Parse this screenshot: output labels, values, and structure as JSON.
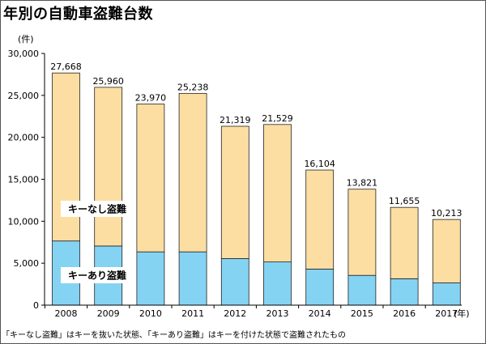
{
  "chart_data": {
    "type": "bar",
    "stacked": true,
    "title": "年別の自動車盗難台数",
    "ylabel": "(件)",
    "xlabel": "(年)",
    "ylim": [
      0,
      30000
    ],
    "yticks": [
      0,
      5000,
      10000,
      15000,
      20000,
      25000,
      30000
    ],
    "ytick_labels": [
      "0",
      "5,000",
      "10,000",
      "15,000",
      "20,000",
      "25,000",
      "30,000"
    ],
    "categories": [
      "2008",
      "2009",
      "2010",
      "2011",
      "2012",
      "2013",
      "2014",
      "2015",
      "2016",
      "2017"
    ],
    "totals": [
      27668,
      25960,
      23970,
      25238,
      21319,
      21529,
      16104,
      13821,
      11655,
      10213
    ],
    "total_labels": [
      "27,668",
      "25,960",
      "23,970",
      "25,238",
      "21,319",
      "21,529",
      "16,104",
      "13,821",
      "11,655",
      "10,213"
    ],
    "series": [
      {
        "name": "キーあり盗難",
        "color": "#85d3f3",
        "values": [
          7650,
          7050,
          6350,
          6350,
          5550,
          5150,
          4300,
          3550,
          3150,
          2650
        ]
      },
      {
        "name": "キーなし盗難",
        "color": "#fcdea2",
        "values": [
          20018,
          18910,
          17620,
          18888,
          15769,
          16379,
          11804,
          10271,
          8505,
          7563
        ]
      }
    ],
    "legend_labels": {
      "keyless": "キーなし盗難",
      "withkey": "キーあり盗難"
    },
    "grid": false
  },
  "footnote": "「キーなし盗難」はキーを抜いた状態､「キーあり盗難」はキーを付けた状態で盗難されたもの"
}
